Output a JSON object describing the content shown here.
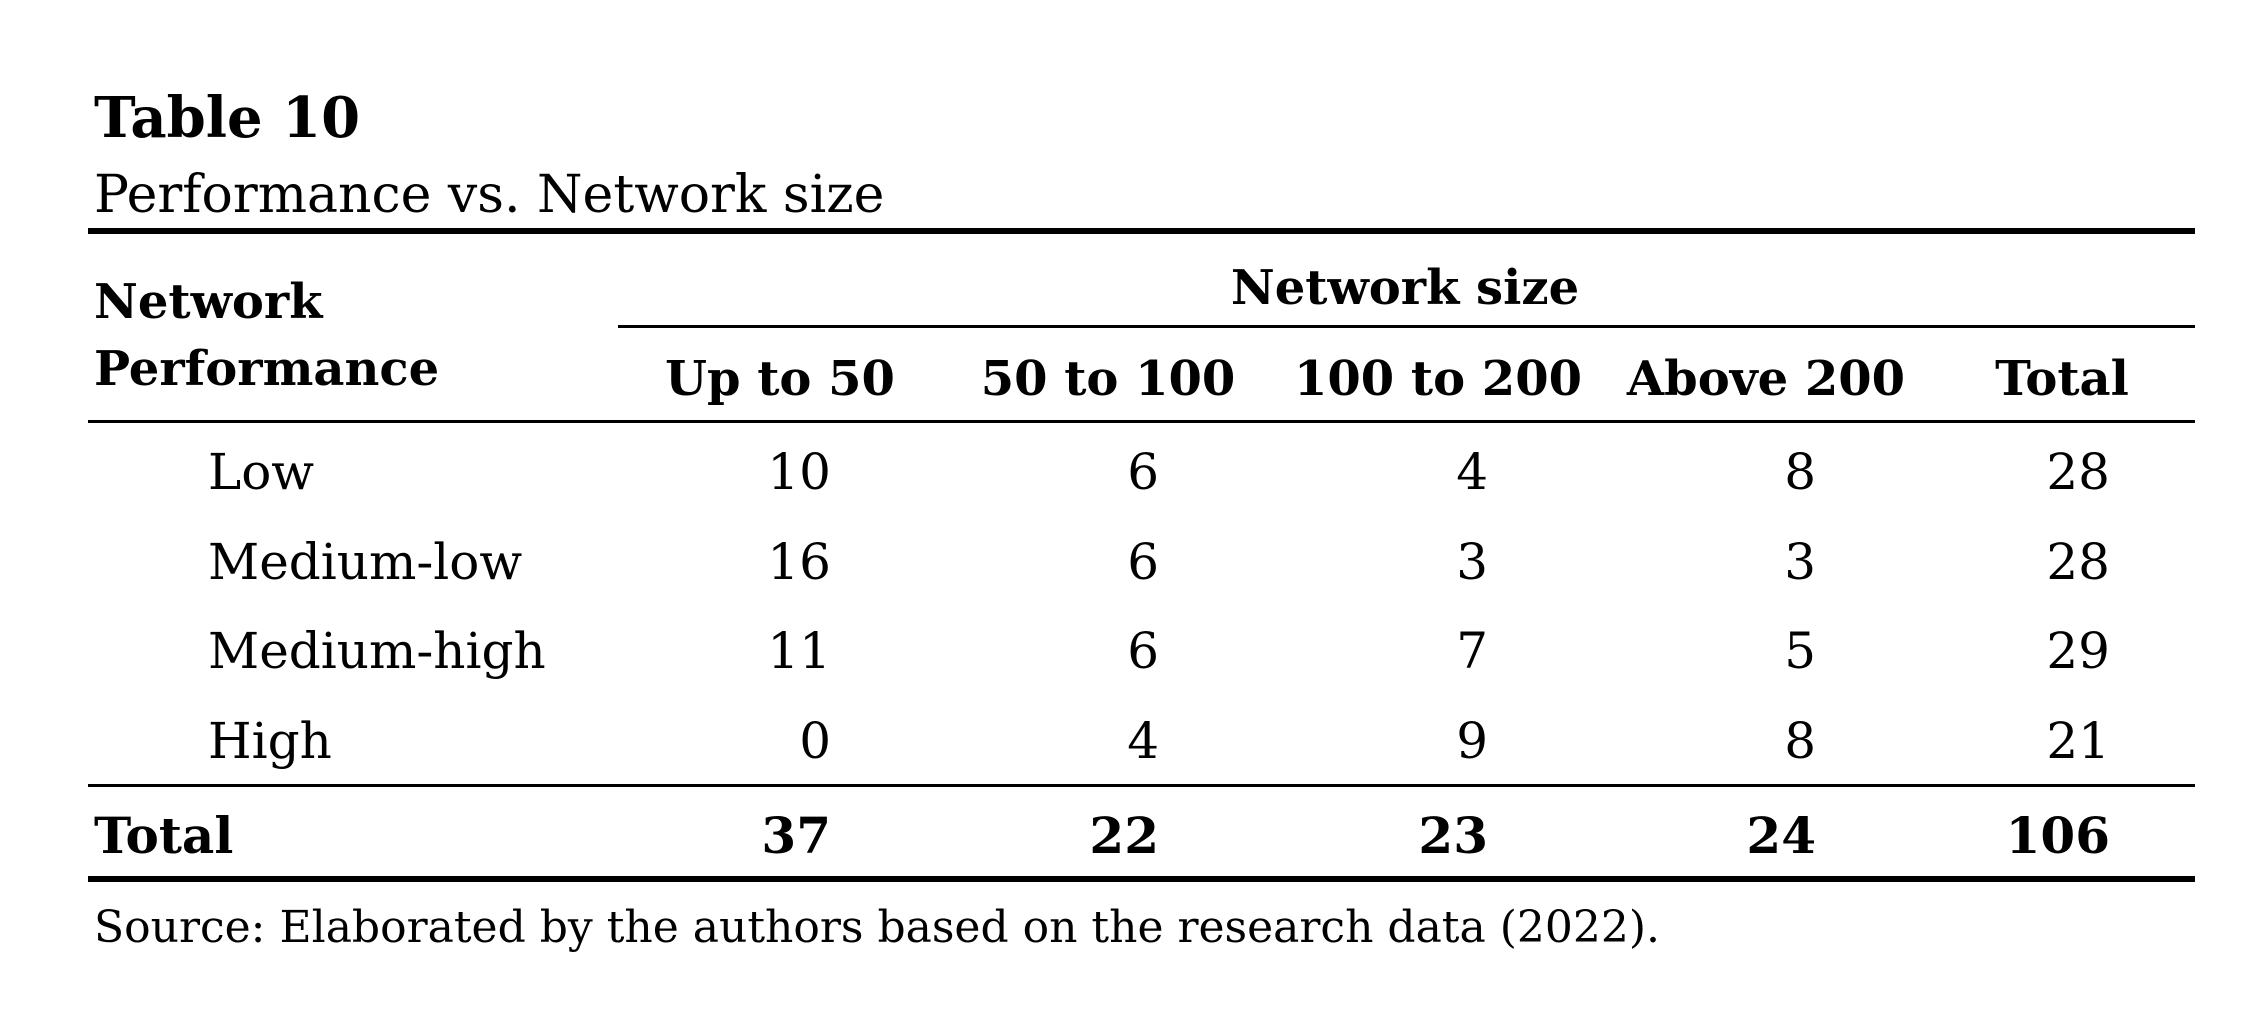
{
  "title": "Table 10",
  "subtitle": "Performance vs. Network size",
  "table": {
    "stub_header": [
      "Network",
      "Performance"
    ],
    "spanner": "Network size",
    "columns": [
      "Up to 50",
      "50 to 100",
      "100 to 200",
      "Above 200",
      "Total"
    ],
    "rows": [
      {
        "label": "Low",
        "values": [
          10,
          6,
          4,
          8,
          28
        ]
      },
      {
        "label": "Medium-low",
        "values": [
          16,
          6,
          3,
          3,
          28
        ]
      },
      {
        "label": "Medium-high",
        "values": [
          11,
          6,
          7,
          5,
          29
        ]
      },
      {
        "label": "High",
        "values": [
          0,
          4,
          9,
          8,
          21
        ]
      }
    ],
    "total": {
      "label": "Total",
      "values": [
        37,
        22,
        23,
        24,
        106
      ]
    }
  },
  "source": "Source: Elaborated by the authors based on the research data (2022)."
}
